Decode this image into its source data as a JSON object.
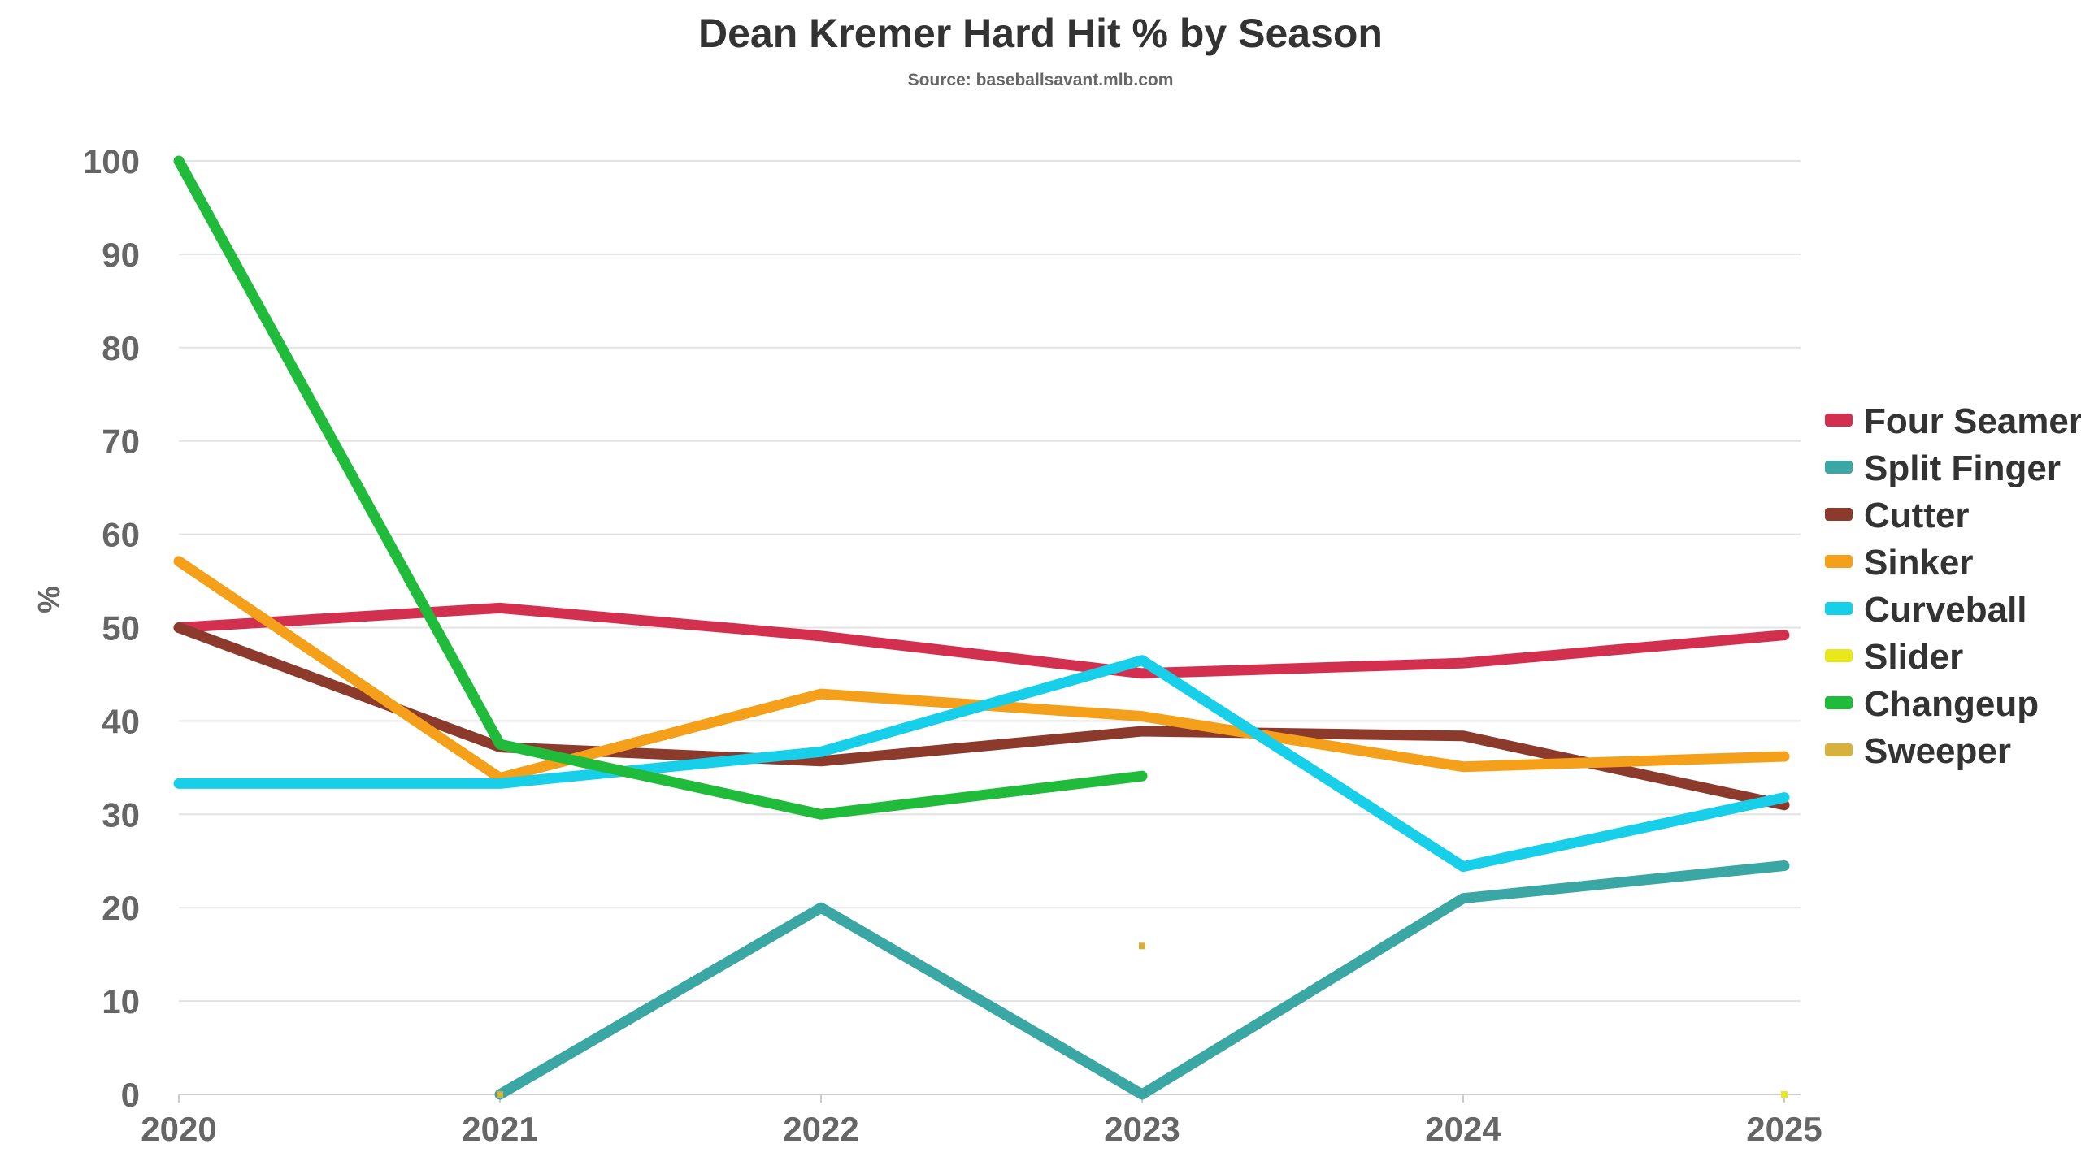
{
  "chart_data": {
    "type": "line",
    "title": "Dean Kremer Hard Hit % by Season",
    "subtitle": "Source: baseballsavant.mlb.com",
    "xlabel": "",
    "ylabel": "%",
    "ylim": [
      0,
      100
    ],
    "yticks": [
      0,
      10,
      20,
      30,
      40,
      50,
      60,
      70,
      80,
      90,
      100
    ],
    "categories": [
      "2020",
      "2021",
      "2022",
      "2023",
      "2024",
      "2025"
    ],
    "grid": true,
    "legend_position": "right",
    "series": [
      {
        "name": "Four Seamer",
        "color": "#d3304f",
        "values": [
          50.0,
          52.1,
          49.1,
          45.1,
          46.2,
          49.2
        ]
      },
      {
        "name": "Split Finger",
        "color": "#3aa7a5",
        "values": [
          null,
          0.0,
          20.0,
          0.0,
          21.0,
          24.5
        ]
      },
      {
        "name": "Cutter",
        "color": "#8b3a2b",
        "values": [
          50.0,
          37.2,
          35.7,
          38.9,
          38.4,
          31.0
        ]
      },
      {
        "name": "Sinker",
        "color": "#f5a01a",
        "values": [
          57.1,
          33.9,
          42.9,
          40.5,
          35.1,
          36.2
        ]
      },
      {
        "name": "Curveball",
        "color": "#17cfe8",
        "values": [
          33.3,
          33.3,
          36.7,
          46.5,
          24.4,
          31.8
        ]
      },
      {
        "name": "Slider",
        "color": "#e8e81c",
        "values": [
          null,
          null,
          null,
          null,
          null,
          0.0
        ]
      },
      {
        "name": "Changeup",
        "color": "#21bb3b",
        "values": [
          100.0,
          37.5,
          30.0,
          34.1,
          null,
          null
        ]
      },
      {
        "name": "Sweeper",
        "color": "#d8b03c",
        "values": [
          null,
          0.0,
          null,
          15.9,
          null,
          null
        ]
      }
    ]
  }
}
